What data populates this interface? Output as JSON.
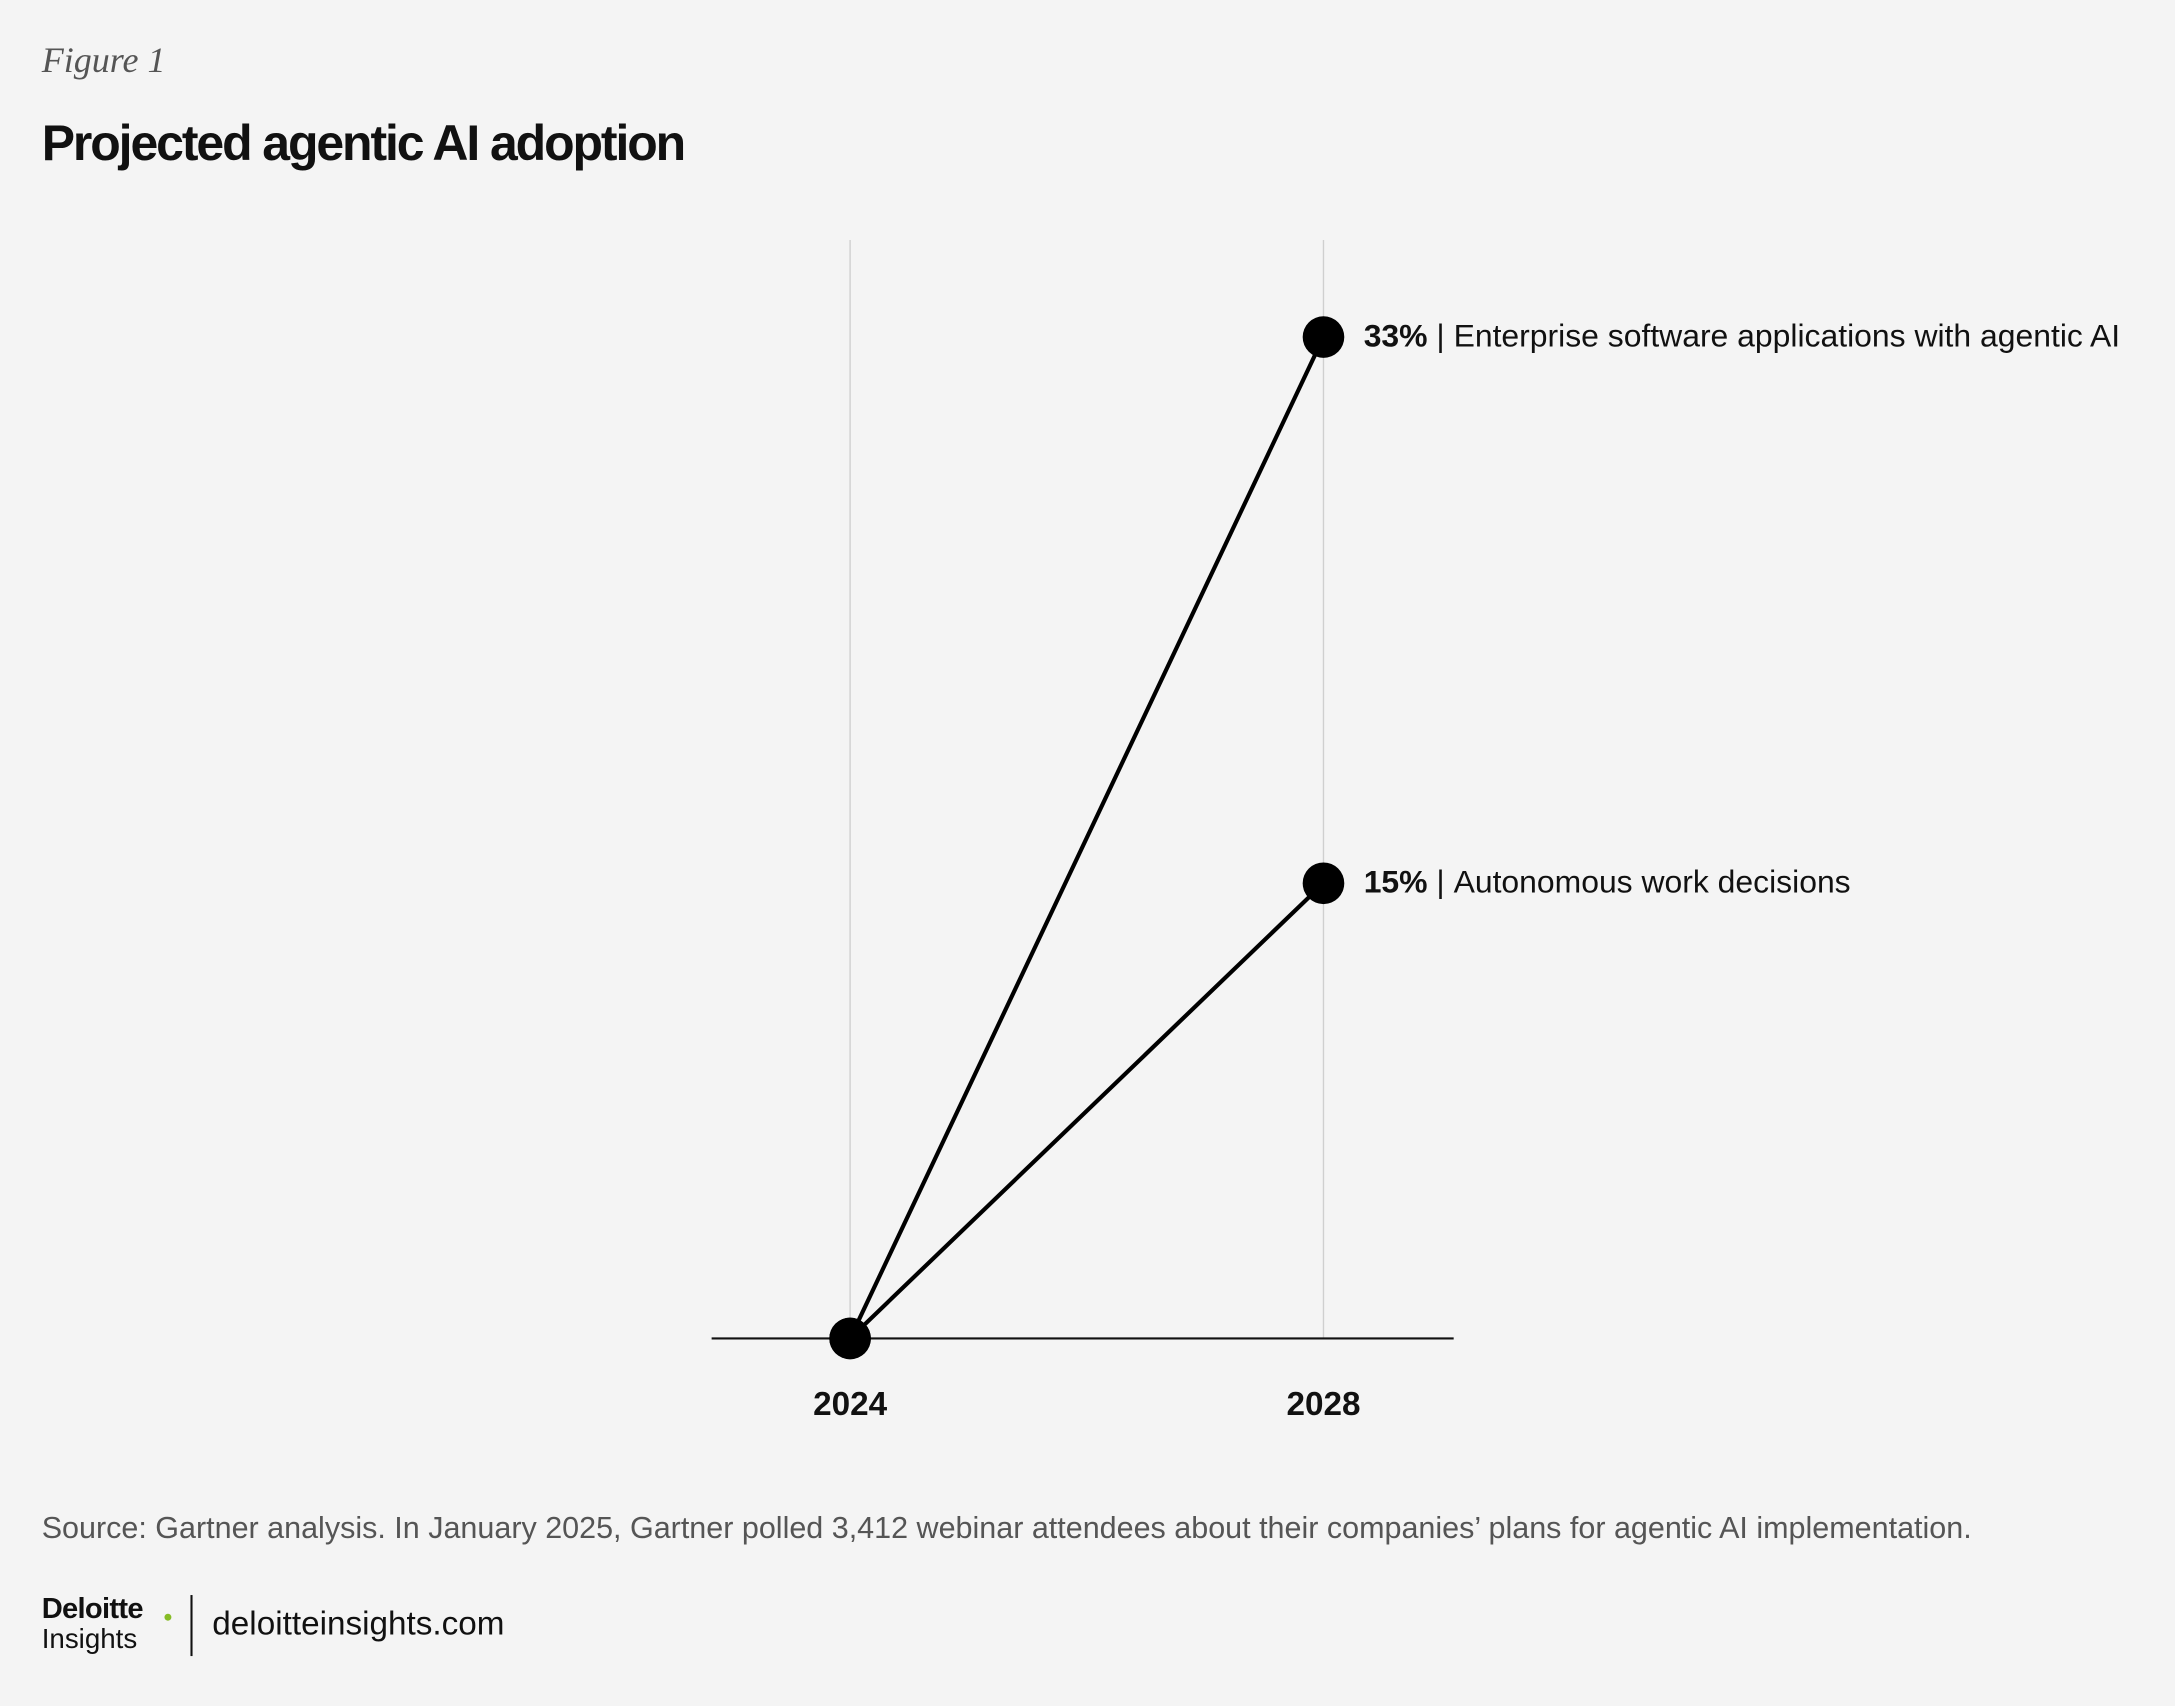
{
  "chart_data": {
    "type": "line",
    "figure_label": "Figure 1",
    "title": "Projected agentic AI adoption",
    "x": [
      2024,
      2028
    ],
    "xlim": [
      2022.83,
      2029.1
    ],
    "xticks": [
      2024,
      2028
    ],
    "ylim": [
      0,
      36.2
    ],
    "grid": true,
    "label_separator": "|",
    "series": [
      {
        "name": "Enterprise software applications with agentic AI",
        "color": "#000000",
        "values": [
          0,
          33
        ],
        "value_labels": [
          null,
          "33%"
        ]
      },
      {
        "name": "Autonomous work decisions",
        "color": "#000000",
        "values": [
          0,
          15
        ],
        "value_labels": [
          null,
          "15%"
        ]
      }
    ],
    "source": "Source: Gartner analysis. In January 2025, Gartner polled 3,412 webinar attendees about their companies’ plans for agentic AI implementation.",
    "logo": {
      "name": "Deloitte",
      "sub": "Insights"
    },
    "website": "deloitteinsights.com"
  }
}
